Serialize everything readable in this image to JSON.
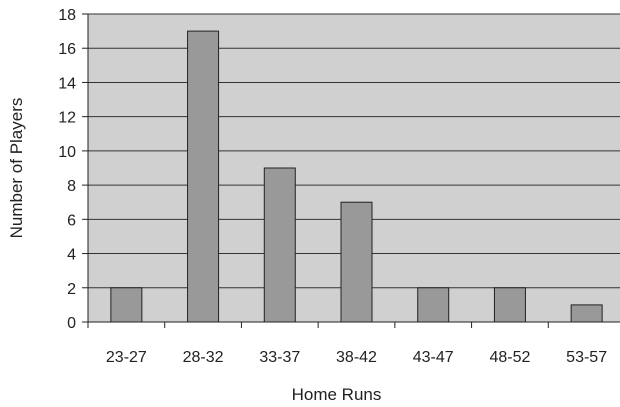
{
  "chart_data": {
    "type": "bar",
    "title": "",
    "xlabel": "Home Runs",
    "ylabel": "Number of Players",
    "categories": [
      "23-27",
      "28-32",
      "33-37",
      "38-42",
      "43-47",
      "48-52",
      "53-57"
    ],
    "values": [
      2,
      17,
      9,
      7,
      2,
      2,
      1
    ],
    "ylim": [
      0,
      18
    ],
    "yticks": [
      "0",
      "2",
      "4",
      "6",
      "8",
      "10",
      "12",
      "14",
      "16",
      "18"
    ],
    "grid": true,
    "legend": "none",
    "colors": {
      "plot_background": "#d0d0d0",
      "bar_fill": "#999999",
      "bar_stroke": "#222222",
      "grid": "#333333"
    }
  }
}
